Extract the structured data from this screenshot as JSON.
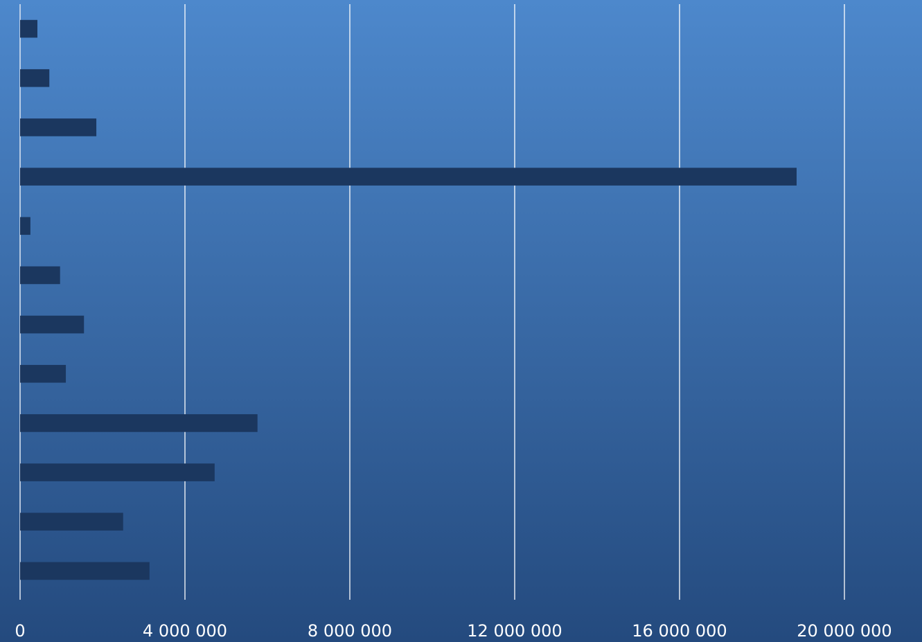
{
  "chart_data": {
    "type": "barh",
    "categories": [
      null,
      null,
      null,
      null,
      null,
      null,
      null,
      null,
      null,
      null,
      null,
      null
    ],
    "values": [
      420000,
      710000,
      1850000,
      18840000,
      250000,
      970000,
      1550000,
      1110000,
      5760000,
      4720000,
      2500000,
      3140000
    ],
    "color": "#1b375f",
    "xlim": [
      0,
      20000000
    ],
    "xticks": [
      0,
      {
        "value": 4000000,
        "label": "4 000 000"
      },
      {
        "value": 8000000,
        "label": "8 000 000"
      },
      {
        "value": 12000000,
        "label": "12 000 000"
      },
      {
        "value": 16000000,
        "label": "16 000 000"
      },
      {
        "value": 20000000,
        "label": "20 000 000"
      }
    ],
    "grid": true
  }
}
